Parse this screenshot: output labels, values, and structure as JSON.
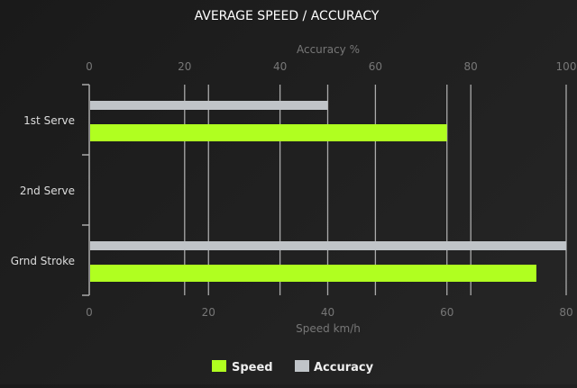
{
  "chart_data": {
    "type": "bar",
    "orientation": "horizontal",
    "title": "AVERAGE SPEED / ACCURACY",
    "categories": [
      "1st Serve",
      "2nd Serve",
      "Grnd Stroke"
    ],
    "top_axis": {
      "label": "Accuracy %",
      "range": [
        0,
        100
      ],
      "ticks": [
        0,
        20,
        40,
        60,
        80,
        100
      ]
    },
    "bottom_axis": {
      "label": "Speed km/h",
      "range": [
        0,
        80
      ],
      "ticks": [
        0,
        20,
        40,
        60,
        80
      ]
    },
    "grid": true,
    "legend_position": "bottom",
    "series": [
      {
        "name": "Speed",
        "axis": "bottom",
        "color": "#b0ff20",
        "values": [
          60,
          null,
          75
        ]
      },
      {
        "name": "Accuracy",
        "axis": "top",
        "color": "#c0c4c8",
        "values": [
          50,
          null,
          100
        ]
      }
    ]
  }
}
